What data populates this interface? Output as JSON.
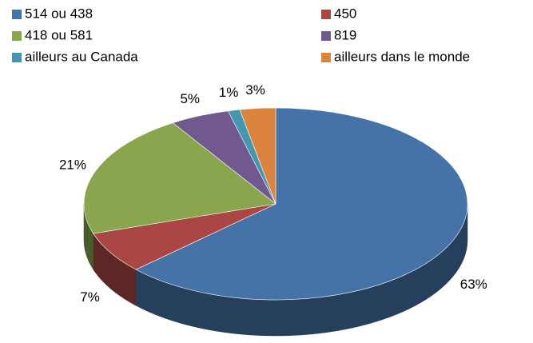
{
  "chart_data": {
    "type": "pie",
    "categories": [
      "514 ou 438",
      "450",
      "418 ou 581",
      "819",
      "ailleurs au Canada",
      "ailleurs dans le monde"
    ],
    "values": [
      63,
      7,
      21,
      5,
      1,
      3
    ],
    "value_labels": [
      "63%",
      "7%",
      "21%",
      "5%",
      "1%",
      "3%"
    ],
    "colors": [
      "#4572a7",
      "#aa4643",
      "#89a54e",
      "#71588f",
      "#4198af",
      "#db843d"
    ],
    "legend": "top",
    "three_d": true
  }
}
